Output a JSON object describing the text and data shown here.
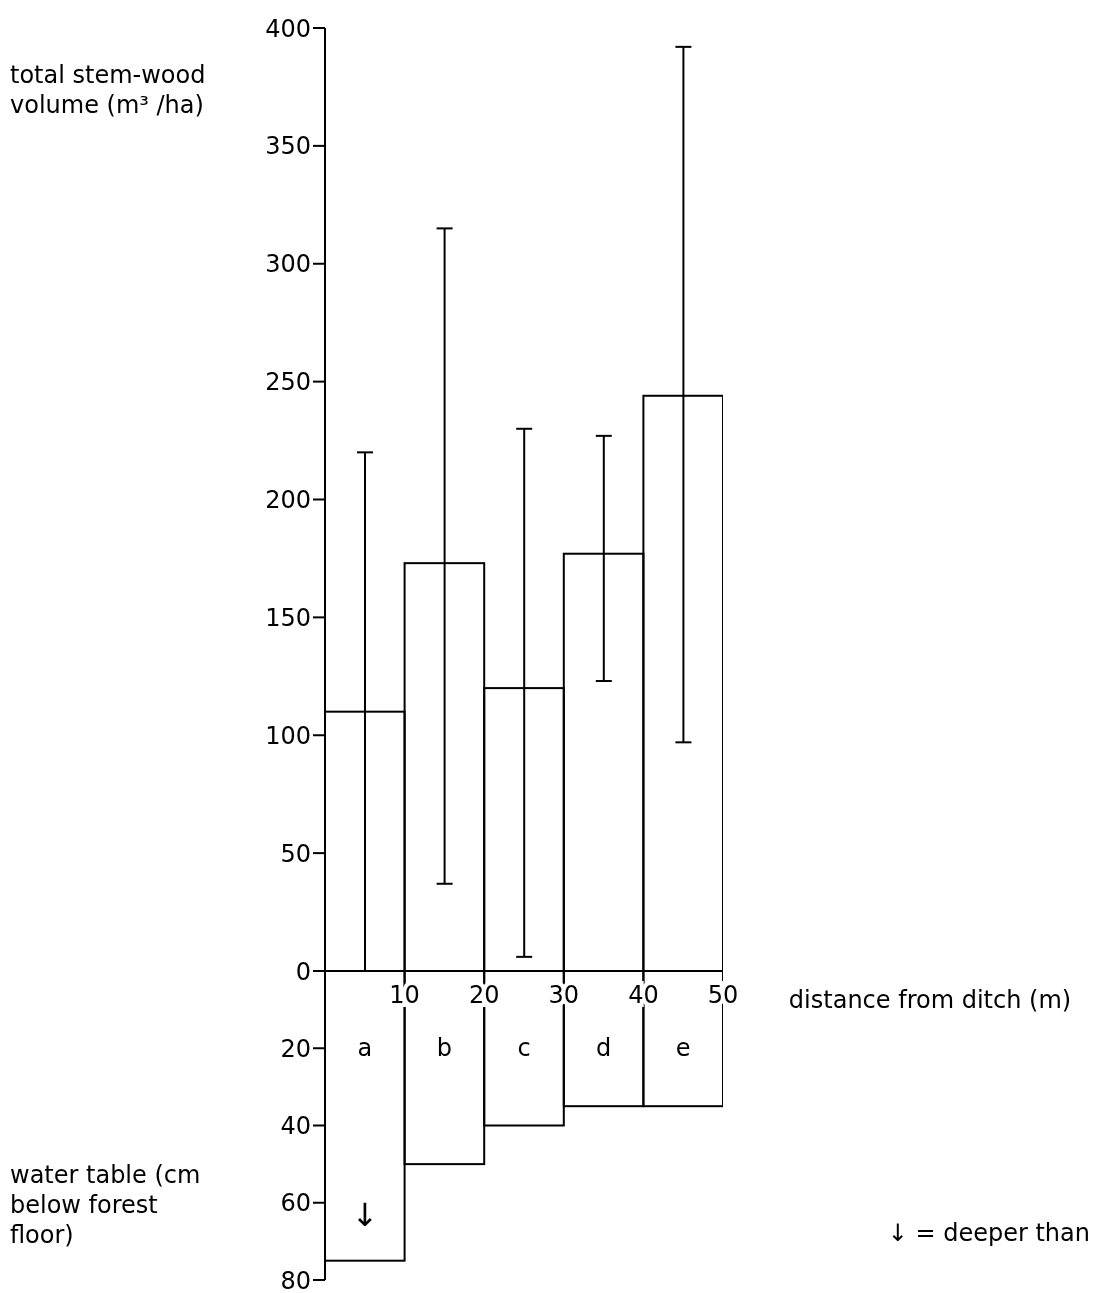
{
  "chart_data": [
    {
      "type": "histogram",
      "bins": [
        0,
        10,
        20,
        30,
        40,
        50
      ],
      "values": [
        110,
        173,
        120,
        177,
        244
      ],
      "errors": [
        [
          0,
          220
        ],
        [
          37,
          315
        ],
        [
          6,
          230
        ],
        [
          123,
          227
        ],
        [
          97,
          392
        ]
      ],
      "color": "#000000",
      "xlim": [
        0,
        50
      ],
      "ylim": [
        0,
        400
      ],
      "yticks": [
        0,
        50,
        100,
        150,
        200,
        250,
        300,
        350,
        400
      ],
      "tick_labels": "y",
      "ylabel": "total stem-wood volume (m³ /ha)"
    },
    {
      "type": "histogram",
      "bins": [
        0,
        10,
        20,
        30,
        40,
        50
      ],
      "values": [
        75,
        50,
        40,
        35,
        35
      ],
      "color": "#000000",
      "xlim": [
        0,
        50
      ],
      "xticks": [
        10,
        20,
        30,
        40,
        50
      ],
      "ylim": [
        80,
        0
      ],
      "yticks": [
        20,
        40,
        60,
        80
      ],
      "xlabel": "distance from ditch (m)",
      "ylabel": "water table (cm below forest floor)",
      "annotations": [
        "a",
        "b",
        "c",
        "d",
        "e",
        "↓",
        "↓ = deeper than"
      ]
    }
  ]
}
